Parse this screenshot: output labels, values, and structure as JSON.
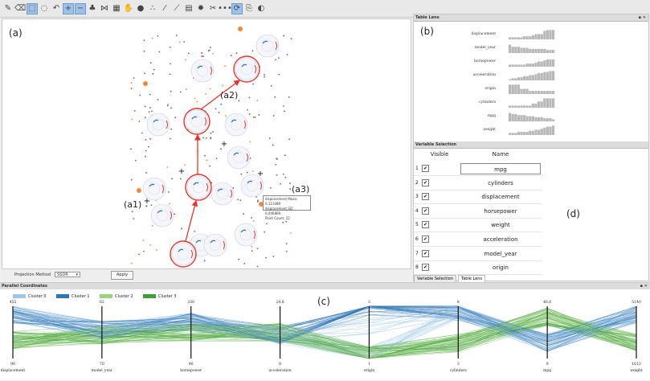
{
  "toolbar": {
    "icons": [
      "brush-icon",
      "eraser-icon",
      "select-icon",
      "lasso-icon",
      "undo-icon",
      "zoom-in-icon",
      "zoom-out-icon",
      "tree-icon",
      "network-icon",
      "table-icon",
      "hand-icon",
      "circle-icon",
      "scatter-icon",
      "line-icon",
      "ruler-icon",
      "grid-icon",
      "gear-icon",
      "scissors-icon",
      "dots-icon",
      "refresh-icon",
      "copy-icon",
      "palette-icon"
    ],
    "glyphs": [
      "✎",
      "⌫",
      "⬚",
      "◌",
      "↶",
      "+",
      "−",
      "♣",
      "⋈",
      "▦",
      "✋",
      "●",
      "∴",
      "⁄",
      "⟋",
      "▤",
      "✹",
      "✂",
      "•••",
      "⟳",
      "⎘",
      "◐"
    ]
  },
  "panel_labels": {
    "a": "(a)",
    "b": "(b)",
    "c": "(c)",
    "d": "(d)",
    "a1": "(a1)",
    "a2": "(a2)",
    "a3": "(a3)"
  },
  "projection": {
    "label": "Projection Method",
    "value": "SSDR",
    "apply": "Apply"
  },
  "tooltip": {
    "line1": "displacement Mean: 0.111089",
    "line2": "displacement SD: 0.046869",
    "line3": "Point Count: 22"
  },
  "table_lens": {
    "title": "Table Lens",
    "rows": [
      {
        "name": "displacement",
        "bars": [
          2,
          2,
          2,
          2,
          2,
          3,
          3,
          3,
          4,
          5,
          5,
          5,
          8,
          9,
          9,
          9
        ]
      },
      {
        "name": "model_year",
        "bars": [
          8,
          6,
          6,
          6,
          5,
          5,
          5,
          4,
          4,
          4,
          4,
          4,
          4,
          3,
          3,
          3
        ]
      },
      {
        "name": "horsepower",
        "bars": [
          2,
          2,
          2,
          2,
          2,
          2,
          3,
          3,
          3,
          4,
          5,
          5,
          6,
          7,
          7,
          7
        ]
      },
      {
        "name": "acceleration",
        "bars": [
          1,
          2,
          2,
          3,
          3,
          4,
          4,
          5,
          5,
          6,
          7,
          7,
          8,
          8,
          9,
          9
        ]
      },
      {
        "name": "origin",
        "bars": [
          9,
          9,
          9,
          9,
          5,
          5,
          5,
          3,
          3,
          3,
          3,
          3,
          3,
          3,
          3,
          3
        ]
      },
      {
        "name": "cylinders",
        "bars": [
          2,
          2,
          2,
          2,
          2,
          2,
          2,
          2,
          4,
          4,
          6,
          6,
          9,
          9,
          9,
          9
        ]
      },
      {
        "name": "mpg",
        "bars": [
          8,
          7,
          7,
          6,
          6,
          6,
          5,
          5,
          5,
          4,
          4,
          4,
          3,
          3,
          3,
          2
        ]
      },
      {
        "name": "weight",
        "bars": [
          2,
          2,
          2,
          3,
          3,
          3,
          3,
          4,
          4,
          5,
          5,
          6,
          7,
          8,
          8,
          9
        ]
      }
    ]
  },
  "variable_selection": {
    "title": "Variable Selection",
    "col_visible": "Visible",
    "col_name": "Name",
    "rows": [
      {
        "idx": "1",
        "name": "mpg",
        "checked": "✔"
      },
      {
        "idx": "2",
        "name": "cylinders",
        "checked": "✔"
      },
      {
        "idx": "3",
        "name": "displacement",
        "checked": "✔"
      },
      {
        "idx": "4",
        "name": "horsepower",
        "checked": "✔"
      },
      {
        "idx": "5",
        "name": "weight",
        "checked": "✔"
      },
      {
        "idx": "6",
        "name": "acceleration",
        "checked": "✔"
      },
      {
        "idx": "7",
        "name": "model_year",
        "checked": "✔"
      },
      {
        "idx": "8",
        "name": "origin",
        "checked": "✔"
      }
    ],
    "tabs": [
      "Variable Selection",
      "Table Lens"
    ]
  },
  "parallel": {
    "title": "Parallel Coordinates",
    "legend": [
      {
        "name": "Cluster 0",
        "color": "#9cc7e6"
      },
      {
        "name": "Cluster 1",
        "color": "#2f74b5"
      },
      {
        "name": "Cluster 2",
        "color": "#9bd27d"
      },
      {
        "name": "Cluster 3",
        "color": "#3f9e3a"
      }
    ],
    "axes": [
      {
        "name": "displacement",
        "max": "455",
        "min": "98"
      },
      {
        "name": "model_year",
        "max": "82",
        "min": "70"
      },
      {
        "name": "horsepower",
        "max": "230",
        "min": "46"
      },
      {
        "name": "acceleration",
        "max": "24.8",
        "min": "8"
      },
      {
        "name": "origin",
        "max": "3",
        "min": "1"
      },
      {
        "name": "cylinders",
        "max": "8",
        "min": "3"
      },
      {
        "name": "mpg",
        "max": "46.6",
        "min": "9"
      },
      {
        "name": "weight",
        "max": "5140",
        "min": "1613"
      }
    ]
  },
  "colors": {
    "accent_red": "#e8332a",
    "orange": "#f08a3a",
    "blue": "#2f74b5"
  }
}
